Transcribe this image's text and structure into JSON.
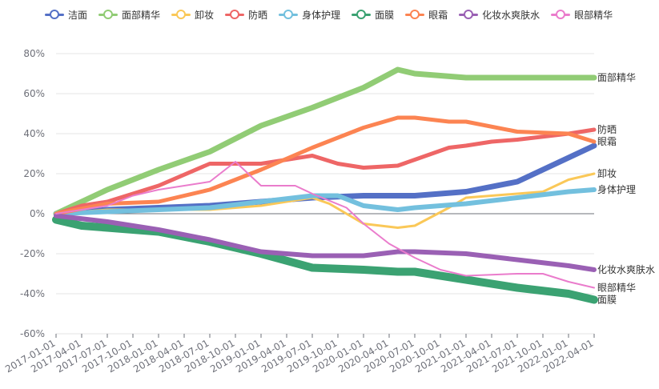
{
  "chart_data": {
    "type": "area",
    "title": "",
    "xlabel": "",
    "ylabel": "",
    "ylim": [
      -60,
      80
    ],
    "y_ticks": [
      -60,
      -40,
      -20,
      0,
      20,
      40,
      60,
      80
    ],
    "y_tick_labels": [
      "-60%",
      "-40%",
      "-20%",
      "0%",
      "20%",
      "40%",
      "60%",
      "80%"
    ],
    "x_tick_labels": [
      "2017-01-01",
      "2017-04-01",
      "2017-07-01",
      "2017-10-01",
      "2018-01-01",
      "2018-04-01",
      "2018-07-01",
      "2018-10-01",
      "2019-01-01",
      "2019-04-01",
      "2019-07-01",
      "2019-10-01",
      "2020-01-01",
      "2020-04-01",
      "2020-07-01",
      "2020-10-01",
      "2021-01-01",
      "2021-04-01",
      "2021-07-01",
      "2021-10-01",
      "2022-01-01",
      "2022-04-01"
    ],
    "grid": true,
    "legend_position": "top-left",
    "series": [
      {
        "name": "洁面",
        "label": "",
        "color": "#5470c6",
        "width": 7,
        "x": [
          0,
          6,
          12,
          18,
          24,
          30,
          36,
          42,
          48,
          54,
          57,
          60,
          63
        ],
        "values": [
          0,
          2,
          3,
          4,
          6,
          8,
          9,
          9,
          11,
          16,
          22,
          28,
          34
        ]
      },
      {
        "name": "面部精华",
        "label": "面部精华",
        "color": "#91cc75",
        "width": 7,
        "x": [
          0,
          3,
          6,
          12,
          18,
          24,
          30,
          36,
          40,
          42,
          48,
          54,
          60,
          63
        ],
        "values": [
          0,
          6,
          12,
          22,
          31,
          44,
          53,
          63,
          72,
          70,
          68,
          68,
          68,
          68
        ]
      },
      {
        "name": "卸妆",
        "label": "卸妆",
        "color": "#fac858",
        "width": 3,
        "x": [
          0,
          6,
          12,
          18,
          24,
          30,
          32,
          34,
          36,
          40,
          42,
          46,
          48,
          54,
          57,
          60,
          63
        ],
        "values": [
          0,
          2,
          2,
          2,
          4,
          8,
          5,
          0,
          -5,
          -7,
          -6,
          3,
          8,
          10,
          11,
          17,
          20
        ]
      },
      {
        "name": "防晒",
        "label": "防晒",
        "color": "#ee6666",
        "width": 5,
        "x": [
          0,
          3,
          6,
          12,
          18,
          21,
          24,
          30,
          33,
          36,
          40,
          42,
          46,
          48,
          51,
          54,
          60,
          63
        ],
        "values": [
          0,
          4,
          6,
          14,
          25,
          25,
          25,
          29,
          25,
          23,
          24,
          27,
          33,
          34,
          36,
          37,
          40,
          42
        ]
      },
      {
        "name": "身体护理",
        "label": "身体护理",
        "color": "#73c0de",
        "width": 6,
        "x": [
          0,
          6,
          12,
          18,
          24,
          30,
          33,
          36,
          40,
          42,
          48,
          54,
          60,
          63
        ],
        "values": [
          0,
          1,
          2,
          3,
          6,
          9,
          9,
          4,
          2,
          3,
          5,
          8,
          11,
          12
        ]
      },
      {
        "name": "面膜",
        "label": "面膜",
        "color": "#3ba272",
        "width": 10,
        "x": [
          0,
          3,
          6,
          12,
          18,
          24,
          30,
          36,
          40,
          42,
          48,
          54,
          60,
          63
        ],
        "values": [
          -3,
          -6,
          -7,
          -9,
          -14,
          -20,
          -27,
          -28,
          -29,
          -29,
          -33,
          -37,
          -40,
          -43
        ]
      },
      {
        "name": "眼霜",
        "label": "眼霜",
        "color": "#fc8452",
        "width": 5,
        "x": [
          0,
          6,
          12,
          18,
          24,
          30,
          36,
          40,
          42,
          46,
          48,
          54,
          60,
          63
        ],
        "values": [
          0,
          5,
          6,
          12,
          22,
          33,
          43,
          48,
          48,
          46,
          46,
          41,
          40,
          36
        ]
      },
      {
        "name": "化妆水爽肤水",
        "label": "化妆水爽肤水",
        "color": "#9a60b4",
        "width": 6,
        "x": [
          0,
          6,
          12,
          18,
          24,
          30,
          36,
          40,
          42,
          48,
          54,
          60,
          63
        ],
        "values": [
          -1,
          -4,
          -8,
          -13,
          -19,
          -21,
          -21,
          -19,
          -19,
          -20,
          -23,
          -26,
          -28
        ]
      },
      {
        "name": "眼部精华",
        "label": "眼部精华",
        "color": "#ea7ccc",
        "width": 2,
        "x": [
          0,
          6,
          9,
          12,
          18,
          21,
          24,
          28,
          30,
          34,
          36,
          39,
          42,
          45,
          48,
          54,
          57,
          60,
          63
        ],
        "values": [
          0,
          4,
          9,
          12,
          16,
          26,
          14,
          14,
          10,
          3,
          -5,
          -15,
          -22,
          -28,
          -31,
          -30,
          -30,
          -34,
          -37
        ]
      }
    ]
  }
}
